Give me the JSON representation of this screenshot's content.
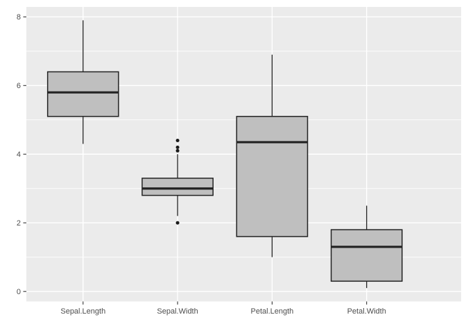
{
  "chart_data": {
    "type": "boxplot",
    "title": "",
    "xlabel": "",
    "ylabel": "",
    "categories": [
      "Sepal.Length",
      "Sepal.Width",
      "Petal.Length",
      "Petal.Width"
    ],
    "series": [
      {
        "name": "Sepal.Length",
        "whisker_low": 4.3,
        "q1": 5.1,
        "median": 5.8,
        "q3": 6.4,
        "whisker_high": 7.9,
        "outliers": []
      },
      {
        "name": "Sepal.Width",
        "whisker_low": 2.2,
        "q1": 2.8,
        "median": 3.0,
        "q3": 3.3,
        "whisker_high": 4.0,
        "outliers": [
          2.0,
          4.1,
          4.2,
          4.4
        ]
      },
      {
        "name": "Petal.Length",
        "whisker_low": 1.0,
        "q1": 1.6,
        "median": 4.35,
        "q3": 5.1,
        "whisker_high": 6.9,
        "outliers": []
      },
      {
        "name": "Petal.Width",
        "whisker_low": 0.1,
        "q1": 0.3,
        "median": 1.3,
        "q3": 1.8,
        "whisker_high": 2.5,
        "outliers": []
      }
    ],
    "y_ticks": [
      "0",
      "2",
      "4",
      "6",
      "8"
    ],
    "y_tick_values": [
      0,
      2,
      4,
      6,
      8
    ],
    "y_minor_tick_values": [
      1,
      3,
      5,
      7
    ],
    "ylim": [
      -0.29,
      8.29
    ],
    "grid": "major+minor",
    "legend": "none",
    "colors": {
      "page_background": "#FFFFFF",
      "panel_background": "#EBEBEB",
      "grid_line": "#FFFFFF",
      "box_fill": "#BFBFBF",
      "box_stroke": "#222222",
      "outlier": "#1A1A1A",
      "tick_label": "#4D4D4D",
      "tick_mark": "#333333"
    }
  }
}
